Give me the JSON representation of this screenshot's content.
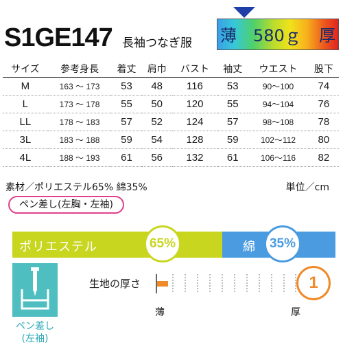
{
  "header": {
    "model": "S1GE147",
    "product": "長袖つなぎ服",
    "gauge_thin": "薄",
    "gauge_weight": "580ｇ",
    "gauge_thick": "厚"
  },
  "size_table": {
    "columns": [
      "サイズ",
      "参考身長",
      "着丈",
      "肩巾",
      "バスト",
      "袖丈",
      "ウエスト",
      "股下"
    ],
    "rows": [
      [
        "M",
        "163 ～ 173",
        "53",
        "48",
        "116",
        "53",
        "90～100",
        "74"
      ],
      [
        "L",
        "173 ～ 178",
        "55",
        "50",
        "120",
        "55",
        "94～104",
        "76"
      ],
      [
        "LL",
        "178 ～ 183",
        "57",
        "52",
        "124",
        "57",
        "98～108",
        "78"
      ],
      [
        "3L",
        "183 ～ 188",
        "59",
        "54",
        "128",
        "59",
        "102～112",
        "80"
      ],
      [
        "4L",
        "188 ～ 193",
        "61",
        "56",
        "132",
        "61",
        "106～116",
        "82"
      ]
    ]
  },
  "material": "素材／ポリエステル65%  綿35%",
  "unit": "単位／cm",
  "pen_note": "ペン差し(左胸・左袖)",
  "composition": {
    "polyester_label": "ポリエステル",
    "polyester_pct": "65%",
    "polyester_value": 65,
    "cotton_label": "綿",
    "cotton_pct": "35%",
    "cotton_value": 35,
    "polyester_color": "#c8d61f",
    "cotton_color": "#4a9be0"
  },
  "feature": {
    "icon": "pen-holder-icon",
    "label_line1": "ペン差し",
    "label_line2": "(左袖)",
    "color": "#4fbec0"
  },
  "thickness": {
    "title": "生地の厚さ",
    "thin_label": "薄",
    "thick_label": "厚",
    "level": "1",
    "accent": "#f08a28"
  }
}
